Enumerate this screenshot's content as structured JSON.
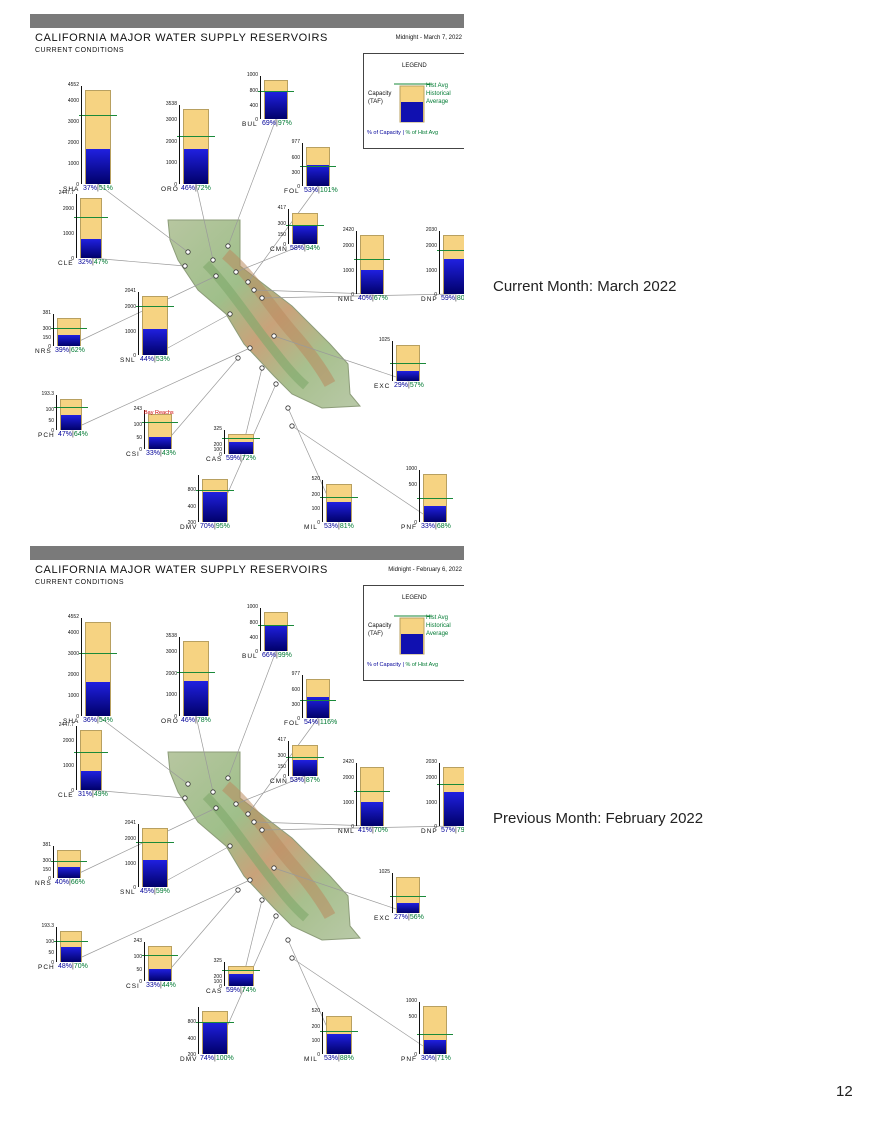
{
  "panels": [
    {
      "title": "CALIFORNIA MAJOR WATER SUPPLY RESERVOIRS",
      "subtitle": "CURRENT CONDITIONS",
      "date": "Midnight - March 7, 2022",
      "side_label": "Current Month: March 2022",
      "note": "Bay Reachs",
      "reservoirs": [
        {
          "code": "SHA",
          "pct_capacity": "37%",
          "pct_hist": "51%",
          "capacity_label": "4552",
          "ticks": [
            "4000",
            "3000",
            "2000",
            "1000",
            "0"
          ],
          "fill": 0.37,
          "hist": 0.73
        },
        {
          "code": "ORO",
          "pct_capacity": "46%",
          "pct_hist": "72%",
          "capacity_label": "3538",
          "ticks": [
            "3000",
            "2000",
            "1000",
            "0"
          ],
          "fill": 0.46,
          "hist": 0.64
        },
        {
          "code": "BUL",
          "pct_capacity": "69%",
          "pct_hist": "97%",
          "capacity_label": "1000",
          "ticks": [
            "800",
            "400",
            "0"
          ],
          "fill": 0.69,
          "hist": 0.71
        },
        {
          "code": "FOL",
          "pct_capacity": "53%",
          "pct_hist": "101%",
          "capacity_label": "977",
          "ticks": [
            "600",
            "300",
            "0"
          ],
          "fill": 0.53,
          "hist": 0.52
        },
        {
          "code": "CLE",
          "pct_capacity": "32%",
          "pct_hist": "47%",
          "capacity_label": "2447.7",
          "ticks": [
            "2000",
            "1000",
            "0"
          ],
          "fill": 0.32,
          "hist": 0.68
        },
        {
          "code": "CMN",
          "pct_capacity": "58%",
          "pct_hist": "94%",
          "capacity_label": "417",
          "ticks": [
            "300",
            "150",
            "0"
          ],
          "fill": 0.58,
          "hist": 0.62
        },
        {
          "code": "NML",
          "pct_capacity": "40%",
          "pct_hist": "67%",
          "capacity_label": "2420",
          "ticks": [
            "2000",
            "1000",
            "0"
          ],
          "fill": 0.4,
          "hist": 0.6
        },
        {
          "code": "DNP",
          "pct_capacity": "59%",
          "pct_hist": "80",
          "capacity_label": "2030",
          "ticks": [
            "2000",
            "1000",
            "0"
          ],
          "fill": 0.59,
          "hist": 0.74
        },
        {
          "code": "NRS",
          "pct_capacity": "39%",
          "pct_hist": "62%",
          "capacity_label": "381",
          "ticks": [
            "300",
            "150",
            "0"
          ],
          "fill": 0.39,
          "hist": 0.63
        },
        {
          "code": "SNL",
          "pct_capacity": "44%",
          "pct_hist": "53%",
          "capacity_label": "2041",
          "ticks": [
            "2000",
            "1000",
            "0"
          ],
          "fill": 0.44,
          "hist": 0.83
        },
        {
          "code": "EXC",
          "pct_capacity": "29%",
          "pct_hist": "57%",
          "capacity_label": "1025",
          "ticks": [],
          "fill": 0.29,
          "hist": 0.51
        },
        {
          "code": "PCH",
          "pct_capacity": "47%",
          "pct_hist": "64%",
          "capacity_label": "193.3",
          "ticks": [
            "100",
            "50",
            "0"
          ],
          "fill": 0.47,
          "hist": 0.73
        },
        {
          "code": "CSI",
          "pct_capacity": "33%",
          "pct_hist": "43%",
          "capacity_label": "243",
          "ticks": [
            "100",
            "50",
            "0"
          ],
          "fill": 0.33,
          "hist": 0.77
        },
        {
          "code": "CAS",
          "pct_capacity": "59%",
          "pct_hist": "72%",
          "capacity_label": "325",
          "ticks": [
            "200",
            "100",
            "0"
          ],
          "fill": 0.59,
          "hist": 0.82
        },
        {
          "code": "DMV",
          "pct_capacity": "70%",
          "pct_hist": "95%",
          "capacity_label": "",
          "ticks": [
            "800",
            "400",
            "200"
          ],
          "fill": 0.7,
          "hist": 0.74
        },
        {
          "code": "MIL",
          "pct_capacity": "53%",
          "pct_hist": "81%",
          "capacity_label": "520",
          "ticks": [
            "200",
            "100",
            "0"
          ],
          "fill": 0.53,
          "hist": 0.65
        },
        {
          "code": "PNF",
          "pct_capacity": "33%",
          "pct_hist": "68%",
          "capacity_label": "1000",
          "ticks": [
            "500",
            "0"
          ],
          "fill": 0.33,
          "hist": 0.49
        }
      ]
    },
    {
      "title": "CALIFORNIA MAJOR WATER SUPPLY RESERVOIRS",
      "subtitle": "CURRENT CONDITIONS",
      "date": "Midnight - February 6, 2022",
      "side_label": "Previous Month: February 2022",
      "note": "",
      "reservoirs": [
        {
          "code": "SHA",
          "pct_capacity": "36%",
          "pct_hist": "54%",
          "capacity_label": "4552",
          "ticks": [
            "4000",
            "3000",
            "2000",
            "1000",
            "0"
          ],
          "fill": 0.36,
          "hist": 0.67
        },
        {
          "code": "ORO",
          "pct_capacity": "46%",
          "pct_hist": "78%",
          "capacity_label": "3538",
          "ticks": [
            "3000",
            "2000",
            "1000",
            "0"
          ],
          "fill": 0.46,
          "hist": 0.59
        },
        {
          "code": "BUL",
          "pct_capacity": "66%",
          "pct_hist": "99%",
          "capacity_label": "1000",
          "ticks": [
            "800",
            "400",
            "0"
          ],
          "fill": 0.66,
          "hist": 0.67
        },
        {
          "code": "FOL",
          "pct_capacity": "54%",
          "pct_hist": "116%",
          "capacity_label": "977",
          "ticks": [
            "600",
            "300",
            "0"
          ],
          "fill": 0.54,
          "hist": 0.47
        },
        {
          "code": "CLE",
          "pct_capacity": "31%",
          "pct_hist": "49%",
          "capacity_label": "2447.7",
          "ticks": [
            "2000",
            "1000",
            "0"
          ],
          "fill": 0.31,
          "hist": 0.64
        },
        {
          "code": "CMN",
          "pct_capacity": "53%",
          "pct_hist": "87%",
          "capacity_label": "417",
          "ticks": [
            "300",
            "150",
            "0"
          ],
          "fill": 0.53,
          "hist": 0.61
        },
        {
          "code": "NML",
          "pct_capacity": "41%",
          "pct_hist": "70%",
          "capacity_label": "2420",
          "ticks": [
            "2000",
            "1000",
            "0"
          ],
          "fill": 0.41,
          "hist": 0.59
        },
        {
          "code": "DNP",
          "pct_capacity": "57%",
          "pct_hist": "79",
          "capacity_label": "2030",
          "ticks": [
            "2000",
            "1000",
            "0"
          ],
          "fill": 0.57,
          "hist": 0.72
        },
        {
          "code": "NRS",
          "pct_capacity": "40%",
          "pct_hist": "66%",
          "capacity_label": "381",
          "ticks": [
            "300",
            "150",
            "0"
          ],
          "fill": 0.4,
          "hist": 0.61
        },
        {
          "code": "SNL",
          "pct_capacity": "45%",
          "pct_hist": "59%",
          "capacity_label": "2041",
          "ticks": [
            "2000",
            "1000",
            "0"
          ],
          "fill": 0.45,
          "hist": 0.76
        },
        {
          "code": "EXC",
          "pct_capacity": "27%",
          "pct_hist": "56%",
          "capacity_label": "1025",
          "ticks": [],
          "fill": 0.27,
          "hist": 0.48
        },
        {
          "code": "PCH",
          "pct_capacity": "48%",
          "pct_hist": "70%",
          "capacity_label": "193.3",
          "ticks": [
            "100",
            "50",
            "0"
          ],
          "fill": 0.48,
          "hist": 0.69
        },
        {
          "code": "CSI",
          "pct_capacity": "33%",
          "pct_hist": "44%",
          "capacity_label": "243",
          "ticks": [
            "100",
            "50",
            "0"
          ],
          "fill": 0.33,
          "hist": 0.75
        },
        {
          "code": "CAS",
          "pct_capacity": "59%",
          "pct_hist": "74%",
          "capacity_label": "325",
          "ticks": [
            "200",
            "100",
            "0"
          ],
          "fill": 0.59,
          "hist": 0.8
        },
        {
          "code": "DMV",
          "pct_capacity": "74%",
          "pct_hist": "100%",
          "capacity_label": "",
          "ticks": [
            "800",
            "400",
            "200"
          ],
          "fill": 0.74,
          "hist": 0.74
        },
        {
          "code": "MIL",
          "pct_capacity": "53%",
          "pct_hist": "88%",
          "capacity_label": "520",
          "ticks": [
            "200",
            "100",
            "0"
          ],
          "fill": 0.53,
          "hist": 0.6
        },
        {
          "code": "PNF",
          "pct_capacity": "30%",
          "pct_hist": "71%",
          "capacity_label": "1000",
          "ticks": [
            "500",
            "0"
          ],
          "fill": 0.3,
          "hist": 0.42
        }
      ]
    }
  ],
  "legend": {
    "title": "LEGEND",
    "capacity_line1": "Capacity",
    "capacity_line2": "(TAF)",
    "hist_line1": "Hist Avg",
    "hist_line2": "Historical",
    "hist_line3": "Average",
    "pct_capacity_label": "% of Capacity",
    "pct_hist_label": "% of Hist Avg"
  },
  "page_number": "12",
  "colors": {
    "capacity": "#f6d382",
    "storage": "#1010b0",
    "hist_avg": "#1a8a3a",
    "pct_capacity_text": "#000099",
    "pct_hist_text": "#007a33"
  }
}
